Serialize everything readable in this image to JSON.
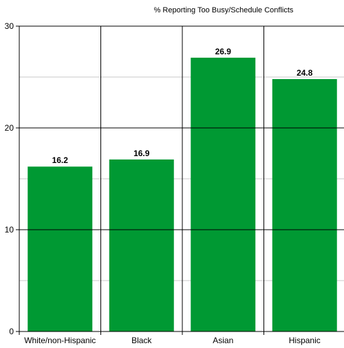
{
  "chart_data": {
    "type": "bar",
    "title": "% Reporting Too Busy/Schedule Conflicts",
    "xlabel": "",
    "ylabel": "",
    "categories": [
      "White/non-Hispanic",
      "Black",
      "Asian",
      "Hispanic"
    ],
    "values": [
      16.2,
      16.9,
      26.9,
      24.8
    ],
    "data_labels": [
      "16.2",
      "16.9",
      "26.9",
      "24.8"
    ],
    "ylim": [
      0,
      30
    ],
    "yticks": [
      0,
      10,
      20,
      30
    ],
    "ytick_labels": [
      "0",
      "10",
      "20",
      "30"
    ],
    "minor_gridlines": [
      5,
      15,
      25
    ],
    "grid": true,
    "legend": "none",
    "bar_color": "#009933",
    "gridline_color": "#c8c8c8",
    "axis_color": "#000000"
  }
}
